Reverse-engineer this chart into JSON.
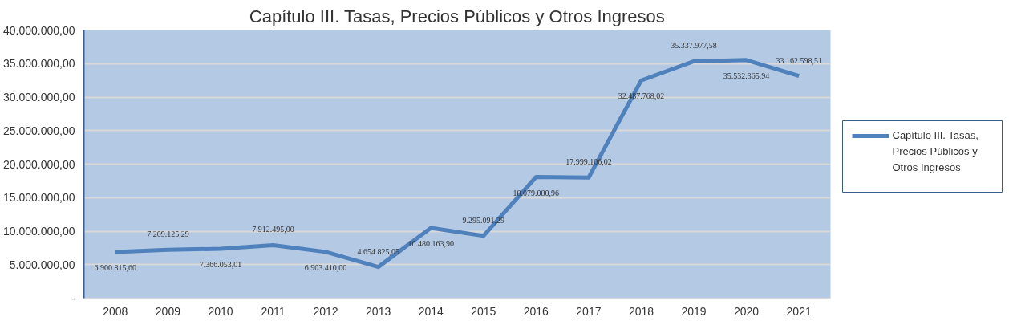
{
  "chart_data": {
    "type": "line",
    "title": "Capítulo III. Tasas, Precios Públicos y Otros Ingresos",
    "categories": [
      "2008",
      "2009",
      "2010",
      "2011",
      "2012",
      "2013",
      "2014",
      "2015",
      "2016",
      "2017",
      "2018",
      "2019",
      "2020",
      "2021"
    ],
    "series": [
      {
        "name": "Capítulo III. Tasas, Precios Públicos y Otros Ingresos",
        "color": "#4f81bd",
        "values": [
          6900815.6,
          7209125.29,
          7366053.01,
          7912495.0,
          6903410.0,
          4654825.05,
          10480163.9,
          9295091.29,
          18079080.96,
          17999106.02,
          32487768.02,
          35337977.58,
          35532365.94,
          33162598.51
        ],
        "value_labels": [
          "6.900.815,60",
          "7.209.125,29",
          "7.366.053,01",
          "7.912.495,00",
          "6.903.410,00",
          "4.654.825,05",
          "10.480.163,90",
          "9.295.091,29",
          "18.079.080,96",
          "17.999.106,02",
          "32.487.768,02",
          "35.337.977,58",
          "35.532.365,94",
          "33.162.598,51"
        ]
      }
    ],
    "ylim": [
      0,
      40000000
    ],
    "yticks": [
      {
        "value": 0,
        "label": "-"
      },
      {
        "value": 5000000,
        "label": "5.000.000,00"
      },
      {
        "value": 10000000,
        "label": "10.000.000,00"
      },
      {
        "value": 15000000,
        "label": "15.000.000,00"
      },
      {
        "value": 20000000,
        "label": "20.000.000,00"
      },
      {
        "value": 25000000,
        "label": "25.000.000,00"
      },
      {
        "value": 30000000,
        "label": "30.000.000,00"
      },
      {
        "value": 35000000,
        "label": "35.000.000,00"
      },
      {
        "value": 40000000,
        "label": "40.000.000,00"
      }
    ],
    "grid": "y",
    "legend": "right",
    "marker": "none",
    "line_style": "solid"
  }
}
